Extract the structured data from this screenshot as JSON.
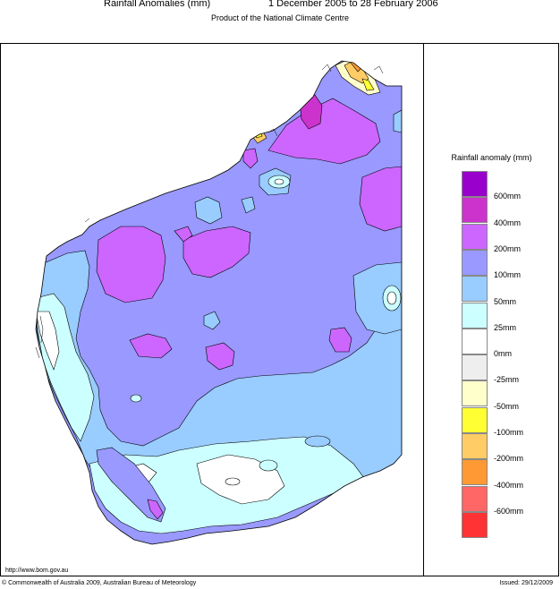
{
  "header": {
    "title_left": "Rainfall Anomalies (mm)",
    "title_right": "1 December 2005 to 28 February 2006",
    "subtitle": "Product of the National Climate Centre"
  },
  "legend": {
    "title": "Rainfall anomaly (mm)",
    "swatch_colors": [
      "#9900cc",
      "#cc33cc",
      "#cc66ff",
      "#9999ff",
      "#99ccff",
      "#ccffff",
      "#ffffff",
      "#eeeeee",
      "#ffffcc",
      "#ffff33",
      "#ffcc66",
      "#ff9933",
      "#ff6666",
      "#ff3333"
    ],
    "labels": [
      "600mm",
      "400mm",
      "200mm",
      "100mm",
      "50mm",
      "25mm",
      "0mm",
      "-25mm",
      "-50mm",
      "-100mm",
      "-200mm",
      "-400mm",
      "-600mm"
    ]
  },
  "footer": {
    "url": "http://www.bom.gov.au",
    "copyright": "© Commonwealth of Australia 2009, Australian Bureau of Meteorology",
    "issued": "Issued: 29/12/2009"
  },
  "map": {
    "region": "Western Australia",
    "colors": {
      "c100": "#9999ff",
      "c200": "#cc66ff",
      "c400": "#cc33cc",
      "c50": "#99ccff",
      "c25": "#ccffff",
      "c0": "#ffffff",
      "cneg25": "#eeeeee",
      "cneg50": "#ffffcc",
      "cneg100": "#ffff33",
      "cneg200": "#ffcc66",
      "cneg400": "#ff9933"
    }
  }
}
